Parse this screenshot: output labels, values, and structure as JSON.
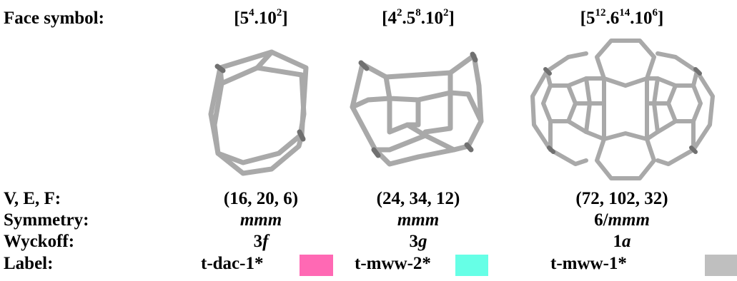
{
  "rows": {
    "face_label": "Face symbol:",
    "vef_label": "V, E, F:",
    "symmetry_label": "Symmetry:",
    "wyckoff_label": "Wyckoff:",
    "label_label": "Label:"
  },
  "columns": [
    {
      "face": {
        "open": "[5",
        "s1": "4",
        "mid1": ".10",
        "s2": "2",
        "close": "]"
      },
      "vef": "(16, 20, 6)",
      "symmetry": {
        "pre": "",
        "it": "mmm"
      },
      "wyckoff": {
        "num": "3",
        "it": "f"
      },
      "label": "t-dac-1*",
      "color": "#ff69b4"
    },
    {
      "face": {
        "open": "[4",
        "s1": "2",
        "mid1": ".5",
        "s2": "8",
        "mid2": ".10",
        "s3": "2",
        "close": "]"
      },
      "vef": "(24, 34, 12)",
      "symmetry": {
        "pre": "",
        "it": "mmm"
      },
      "wyckoff": {
        "num": "3",
        "it": "g"
      },
      "label": "t-mww-2*",
      "color": "#66ffe6"
    },
    {
      "face": {
        "open": "[5",
        "s1": "12",
        "mid1": ".6",
        "s2": "14",
        "mid2": ".10",
        "s3": "6",
        "close": "]"
      },
      "vef": "(72, 102, 32)",
      "symmetry": {
        "pre": "6/",
        "it": "mmm"
      },
      "wyckoff": {
        "num": "1",
        "it": "a"
      },
      "label": "t-mww-1*",
      "color": "#bfbfbf"
    }
  ]
}
